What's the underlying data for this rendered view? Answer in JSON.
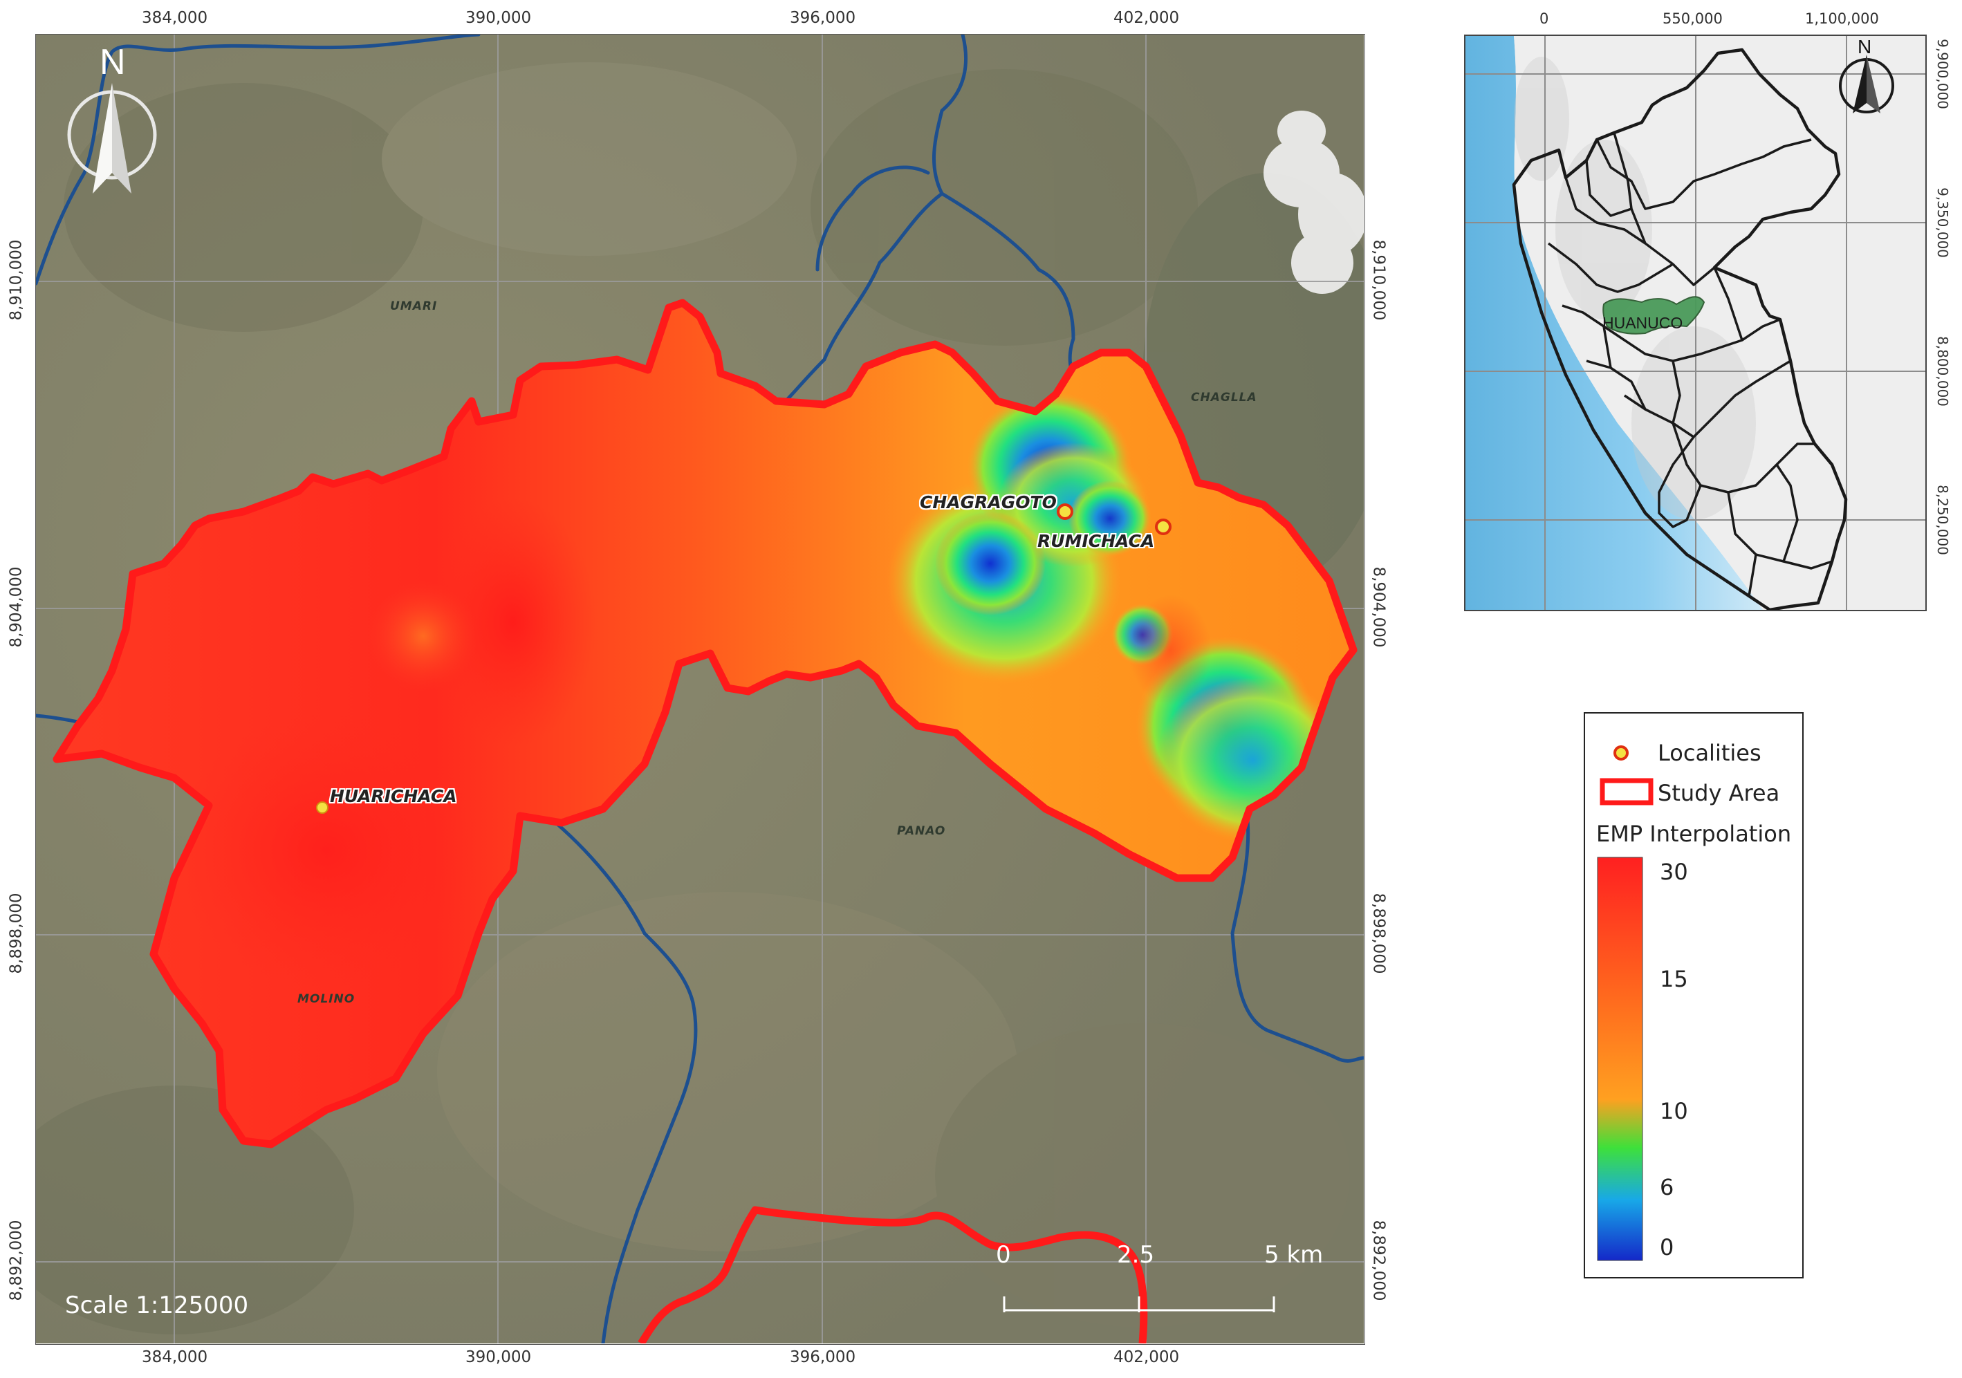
{
  "main_map": {
    "top_ticks": [
      "384,000",
      "390,000",
      "396,000",
      "402,000"
    ],
    "bottom_ticks": [
      "384,000",
      "390,000",
      "396,000",
      "402,000"
    ],
    "left_ticks": [
      "8,910,000",
      "8,904,000",
      "8,898,000",
      "8,892,000"
    ],
    "right_ticks": [
      "8,910,000",
      "8,904,000",
      "8,898,000",
      "8,892,000"
    ],
    "north_label": "N",
    "scale_text": "Scale 1:125000",
    "scalebar_labels": [
      "0",
      "2.5",
      "5 km"
    ],
    "places": [
      "UMARI",
      "CHAGLLA",
      "PANAO",
      "MOLINO"
    ],
    "localities": [
      "HUARICHACA",
      "CHAGRAGOTO",
      "RUMICHACA"
    ]
  },
  "inset_map": {
    "top_ticks": [
      "0",
      "550,000",
      "1,100,000"
    ],
    "right_ticks": [
      "9,900,000",
      "9,350,000",
      "8,800,000",
      "8,250,000"
    ],
    "north_label": "N",
    "region_label": "HUANUCO"
  },
  "legend": {
    "localities_label": "Localities",
    "study_area_label": "Study Area",
    "title": "EMP Interpolation",
    "values": [
      "30",
      "15",
      "10",
      "6",
      "0"
    ]
  },
  "colors": {
    "study_area_outline": "#ff1a1a",
    "river": "#1d4f8f",
    "region_fill": "#4a9a5a",
    "ramp_high": "#ff2020",
    "ramp_mid": "#ff8a1a",
    "ramp_green": "#2ee02e",
    "ramp_low": "#1428c8"
  }
}
